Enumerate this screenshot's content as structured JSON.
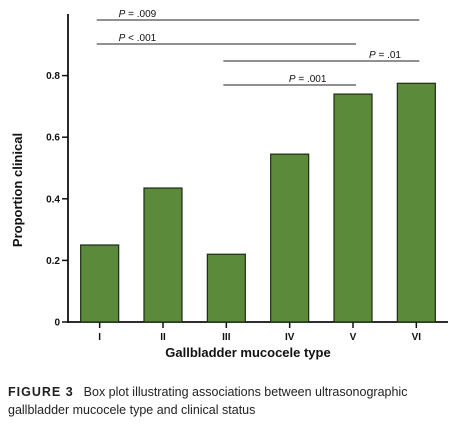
{
  "chart_data": {
    "type": "bar",
    "categories": [
      "I",
      "II",
      "III",
      "IV",
      "V",
      "VI"
    ],
    "values": [
      0.25,
      0.435,
      0.22,
      0.545,
      0.74,
      0.775
    ],
    "xlabel": "Gallbladder mucocele type",
    "ylabel": "Proportion clinical",
    "ylim": [
      0,
      1.0
    ],
    "yticks": [
      0,
      0.2,
      0.4,
      0.6,
      0.8
    ],
    "ytick_labels": [
      "0",
      "0.2",
      "0.4",
      "0.6",
      "0.8"
    ],
    "bar_color": "#5a8a3a",
    "bar_outline": "#1f2b14",
    "grid": false,
    "significance": [
      {
        "from": "I",
        "to": "VI",
        "label_p": "P",
        "label_rest": " = .009"
      },
      {
        "from": "I",
        "to": "V",
        "label_p": "P",
        "label_rest": " < .001"
      },
      {
        "from": "III",
        "to": "VI",
        "label_p": "P",
        "label_rest": " = .01"
      },
      {
        "from": "III",
        "to": "V",
        "label_p": "P",
        "label_rest": " = .001"
      }
    ]
  },
  "caption": {
    "figure_label": "FIGURE 3",
    "text": "Box plot illustrating associations between ultrasonographic gallbladder mucocele type and clinical status"
  }
}
